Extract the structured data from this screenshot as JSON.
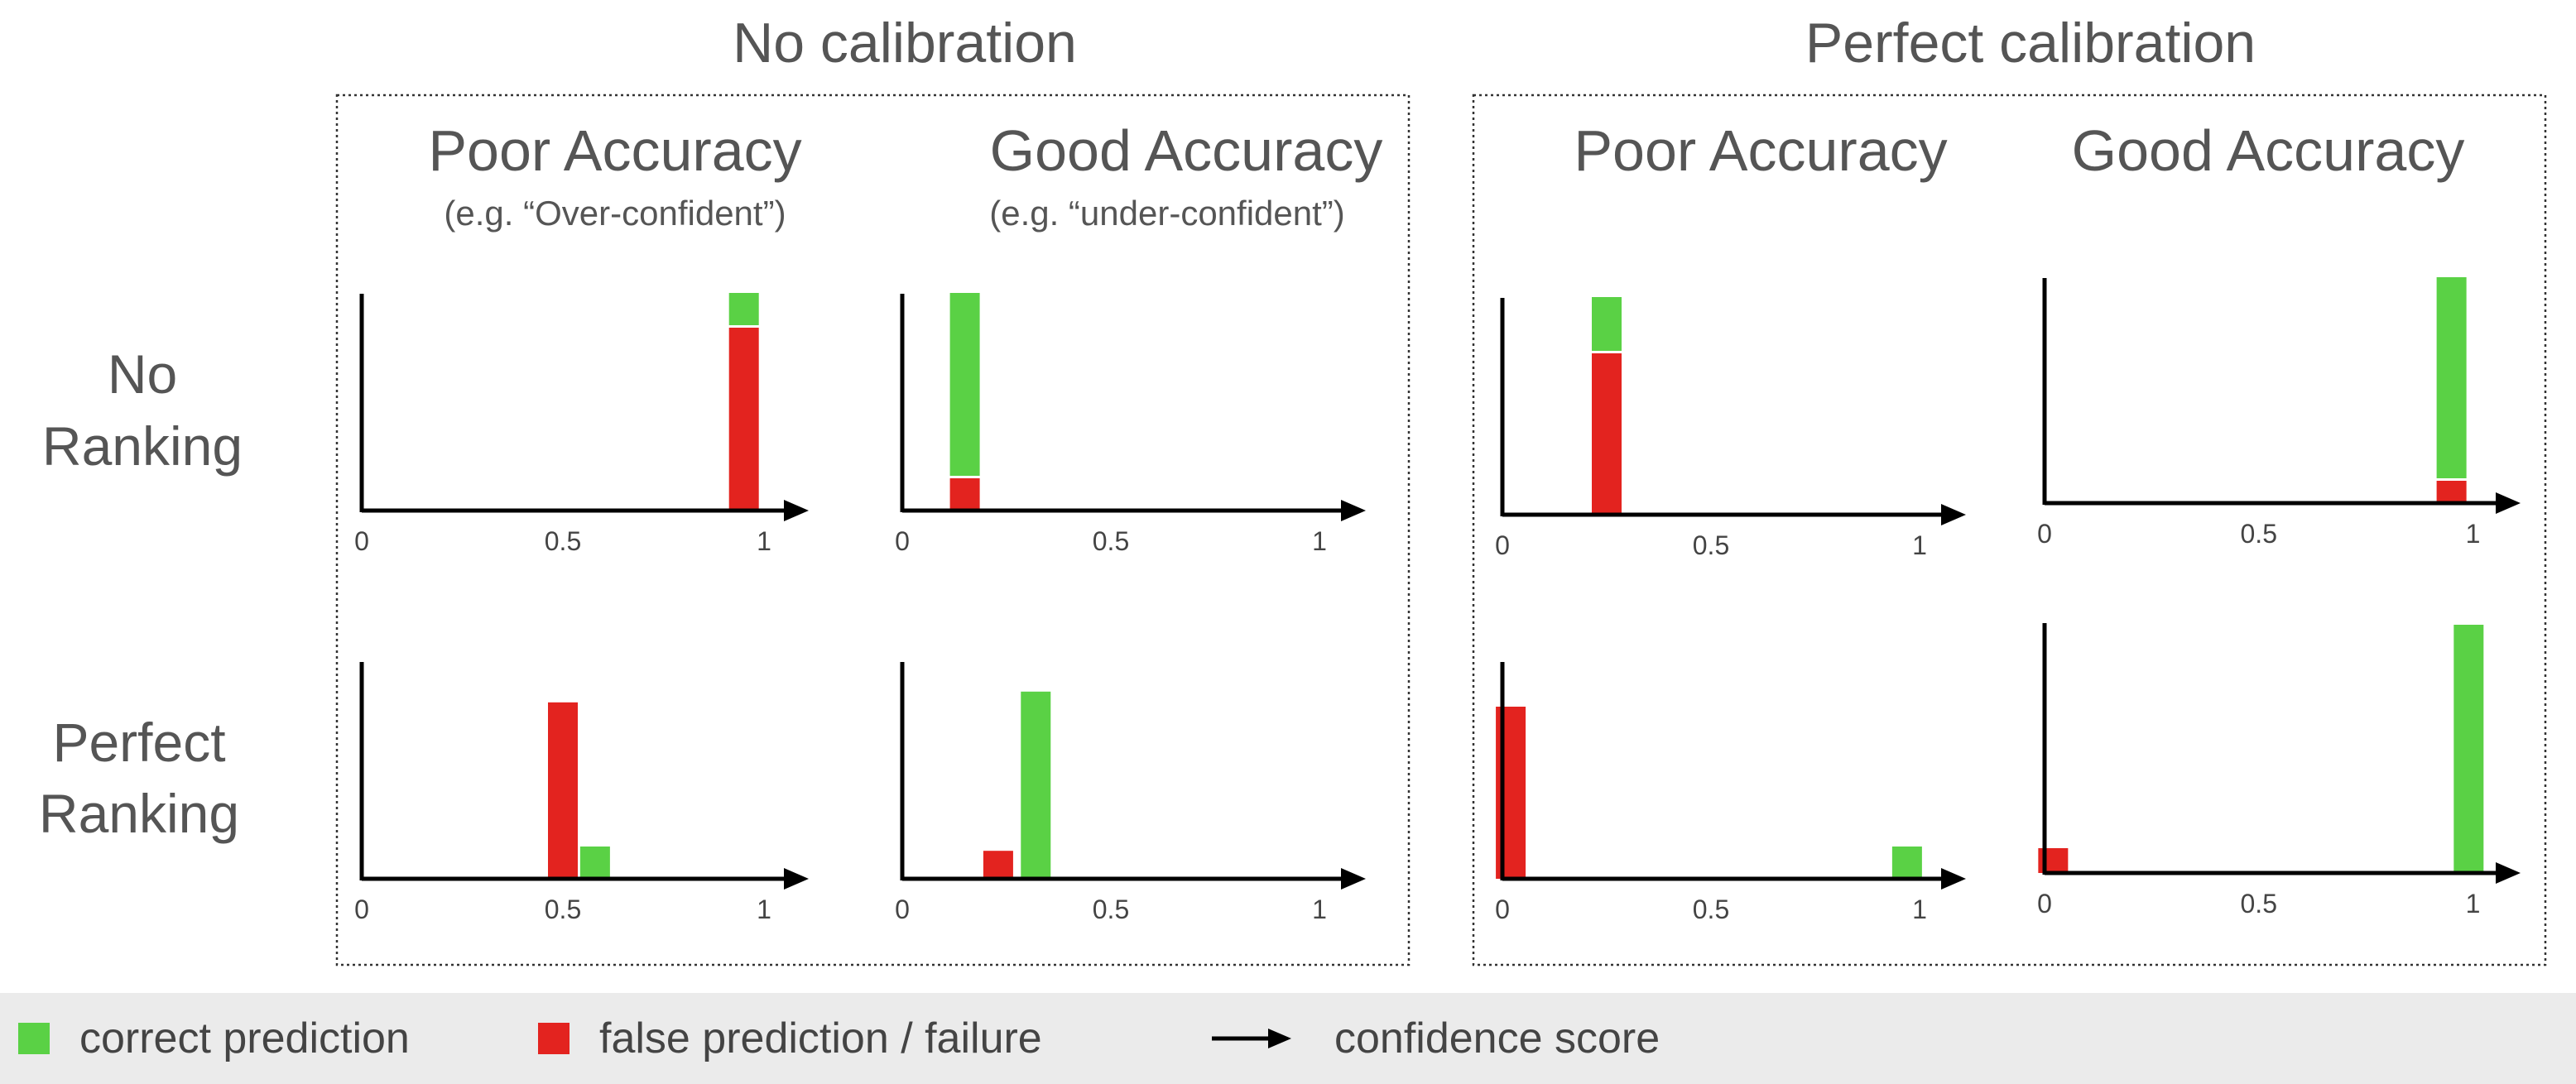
{
  "colors": {
    "correct": "#5ad145",
    "failure": "#e3231f",
    "axis": "#000000",
    "text": "#555555"
  },
  "groups": [
    {
      "title": "No calibration"
    },
    {
      "title": "Perfect calibration"
    }
  ],
  "rows": [
    {
      "label_line1": "No",
      "label_line2": "Ranking"
    },
    {
      "label_line1": "Perfect",
      "label_line2": "Ranking"
    }
  ],
  "columns": [
    {
      "title": "Poor Accuracy",
      "subtitle": "(e.g. “Over-confident”)"
    },
    {
      "title": "Good Accuracy",
      "subtitle": "(e.g. “under-confident”)"
    },
    {
      "title": "Poor Accuracy",
      "subtitle": ""
    },
    {
      "title": "Good Accuracy",
      "subtitle": ""
    }
  ],
  "chart_data": [
    {
      "type": "bar",
      "group": "No calibration",
      "row": "No Ranking",
      "column": "Poor Accuracy",
      "xlim": [
        0,
        1
      ],
      "xticks": [
        "0",
        "0.5",
        "1"
      ],
      "stacked_bars": [
        {
          "x": 0.95,
          "failure": 0.85,
          "correct": 0.15
        }
      ]
    },
    {
      "type": "bar",
      "group": "No calibration",
      "row": "No Ranking",
      "column": "Good Accuracy",
      "xlim": [
        0,
        1
      ],
      "xticks": [
        "0",
        "0.5",
        "1"
      ],
      "stacked_bars": [
        {
          "x": 0.15,
          "failure": 0.15,
          "correct": 0.85
        }
      ]
    },
    {
      "type": "bar",
      "group": "Perfect calibration",
      "row": "No Ranking",
      "column": "Poor Accuracy",
      "xlim": [
        0,
        1
      ],
      "xticks": [
        "0",
        "0.5",
        "1"
      ],
      "stacked_bars": [
        {
          "x": 0.25,
          "failure": 0.75,
          "correct": 0.25
        }
      ]
    },
    {
      "type": "bar",
      "group": "Perfect calibration",
      "row": "No Ranking",
      "column": "Good Accuracy",
      "xlim": [
        0,
        1
      ],
      "xticks": [
        "0",
        "0.5",
        "1"
      ],
      "stacked_bars": [
        {
          "x": 0.95,
          "failure": 0.1,
          "correct": 0.9
        }
      ]
    },
    {
      "type": "bar",
      "group": "No calibration",
      "row": "Perfect Ranking",
      "column": "Poor Accuracy",
      "xlim": [
        0,
        1
      ],
      "xticks": [
        "0",
        "0.5",
        "1"
      ],
      "stacked_bars": [
        {
          "x": 0.5,
          "failure": 0.82,
          "correct": 0
        },
        {
          "x": 0.58,
          "failure": 0,
          "correct": 0.15
        }
      ]
    },
    {
      "type": "bar",
      "group": "No calibration",
      "row": "Perfect Ranking",
      "column": "Good Accuracy",
      "xlim": [
        0,
        1
      ],
      "xticks": [
        "0",
        "0.5",
        "1"
      ],
      "stacked_bars": [
        {
          "x": 0.23,
          "failure": 0.13,
          "correct": 0
        },
        {
          "x": 0.32,
          "failure": 0,
          "correct": 0.87
        }
      ]
    },
    {
      "type": "bar",
      "group": "Perfect calibration",
      "row": "Perfect Ranking",
      "column": "Poor Accuracy",
      "xlim": [
        0,
        1
      ],
      "xticks": [
        "0",
        "0.5",
        "1"
      ],
      "stacked_bars": [
        {
          "x": 0.02,
          "failure": 0.8,
          "correct": 0
        },
        {
          "x": 0.97,
          "failure": 0,
          "correct": 0.15
        }
      ]
    },
    {
      "type": "bar",
      "group": "Perfect calibration",
      "row": "Perfect Ranking",
      "column": "Good Accuracy",
      "xlim": [
        0,
        1
      ],
      "xticks": [
        "0",
        "0.5",
        "1"
      ],
      "stacked_bars": [
        {
          "x": 0.02,
          "failure": 0.1,
          "correct": 0
        },
        {
          "x": 0.99,
          "failure": 0,
          "correct": 1.0
        }
      ]
    }
  ],
  "legend": {
    "correct_label": "correct prediction",
    "failure_label": "false prediction / failure",
    "arrow_label": "confidence score"
  }
}
